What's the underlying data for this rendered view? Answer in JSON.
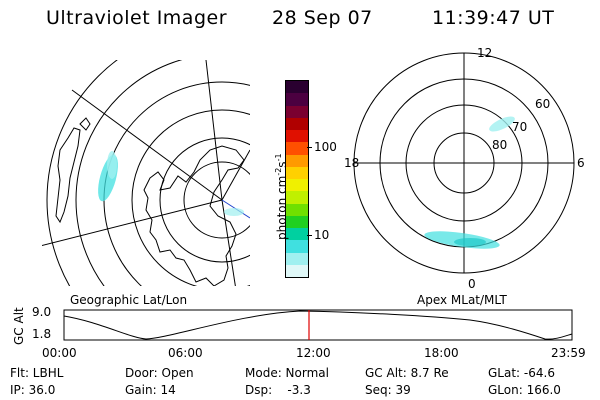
{
  "header": {
    "instrument": "Ultraviolet Imager",
    "date": "28 Sep 07",
    "time": "11:39:47 UT"
  },
  "colorbar": {
    "unit_label": "photon cm",
    "unit_exp1": "-2",
    "unit_mid": "s",
    "unit_exp2": "-1",
    "tick_100": "100",
    "tick_10": "10",
    "colors": [
      "#2a0030",
      "#4b0040",
      "#7a0030",
      "#b00000",
      "#e01000",
      "#ff5000",
      "#ff9a00",
      "#ffd000",
      "#f0f000",
      "#c0f000",
      "#70e000",
      "#20d020",
      "#00d0a0",
      "#40e0e0",
      "#a0f0f0",
      "#e0f8f8"
    ]
  },
  "left_panel": {
    "label": "Geographic Lat/Lon"
  },
  "right_panel": {
    "label": "Apex MLat/MLT",
    "mlt_labels": {
      "top": "12",
      "left": "18",
      "right": "6",
      "bottom": "0"
    },
    "mlat_labels": [
      "60",
      "70",
      "80"
    ]
  },
  "timeline": {
    "axis_label": "GC Alt",
    "y_top": "9.0",
    "y_bottom": "1.8",
    "x_ticks": [
      "00:00",
      "06:00",
      "12:00",
      "18:00",
      "23:59"
    ],
    "current_marker_color": "#e00000"
  },
  "info": {
    "flt_label": "Flt: LBHL",
    "ip_label": "IP: 36.0",
    "door_label": "Door: Open",
    "gain_label": "Gain: 14",
    "mode_label": "Mode: Normal",
    "dsp_label": "Dsp:    -3.3",
    "gcalt_label": "GC Alt: 8.7 Re",
    "seq_label": "Seq: 39",
    "glat_label": "GLat: -64.6",
    "glon_label": "GLon: 166.0"
  }
}
